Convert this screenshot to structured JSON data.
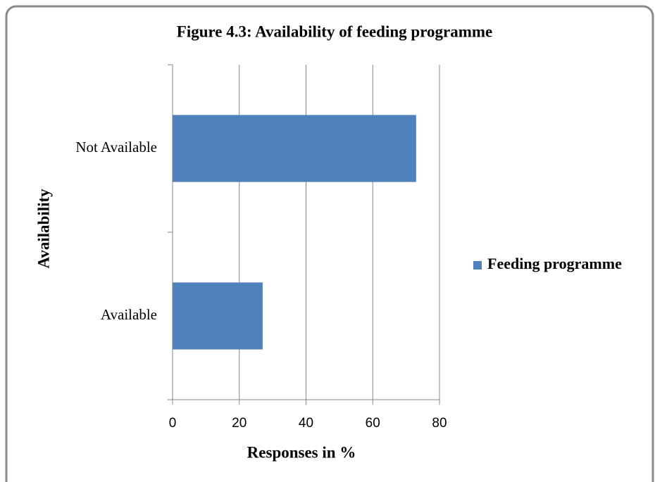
{
  "chart_data": {
    "type": "bar",
    "orientation": "horizontal",
    "title": "Figure 4.3: Availability of feeding programme",
    "x_label": "Responses in %",
    "y_label": "Availability",
    "categories": [
      "Available",
      "Not Available"
    ],
    "series": [
      {
        "name": "Feeding programme",
        "color": "#4f81bd",
        "values": [
          27,
          73
        ]
      }
    ],
    "xlim": [
      0,
      80
    ],
    "xticks": [
      0,
      20,
      40,
      60,
      80
    ],
    "grid": true,
    "legend": "right"
  }
}
